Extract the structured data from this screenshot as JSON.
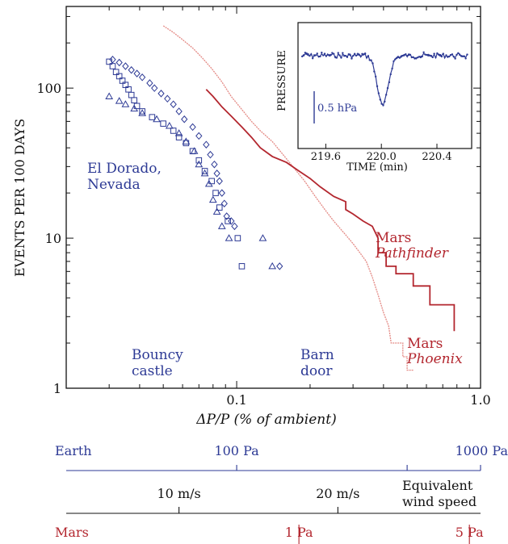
{
  "colors": {
    "earth": "#2d3a95",
    "mars": "#b3272f",
    "mars_light": "#e48a85",
    "axis": "#111111"
  },
  "chart_data": [
    {
      "type": "scatter",
      "title": "",
      "xlabel": "ΔP/P (% of ambient)",
      "ylabel": "EVENTS PER 100 DAYS",
      "xscale": "log",
      "yscale": "log",
      "xlim": [
        0.02,
        1.0
      ],
      "ylim": [
        1,
        350
      ],
      "x_ticks": [
        {
          "value": 0.1,
          "label": "0.1"
        },
        {
          "value": 1.0,
          "label": "1.0"
        }
      ],
      "y_ticks": [
        {
          "value": 1,
          "label": "1"
        },
        {
          "value": 10,
          "label": "10"
        },
        {
          "value": 100,
          "label": "100"
        }
      ],
      "annotations": {
        "el_dorado": [
          "El Dorado,",
          "Nevada"
        ],
        "bouncy": [
          "Bouncy",
          "castle"
        ],
        "barn": [
          "Barn",
          "door"
        ],
        "pathfinder": [
          "Mars",
          "Pathfinder"
        ],
        "phoenix": [
          "Mars",
          "Phoenix"
        ]
      },
      "series": [
        {
          "marker": "diamond",
          "points": [
            [
              0.031,
              155
            ],
            [
              0.033,
              148
            ],
            [
              0.035,
              140
            ],
            [
              0.037,
              132
            ],
            [
              0.039,
              125
            ],
            [
              0.041,
              118
            ],
            [
              0.044,
              108
            ],
            [
              0.046,
              100
            ],
            [
              0.049,
              92
            ],
            [
              0.052,
              85
            ],
            [
              0.055,
              78
            ],
            [
              0.058,
              70
            ],
            [
              0.061,
              62
            ],
            [
              0.066,
              55
            ],
            [
              0.07,
              48
            ],
            [
              0.075,
              42
            ],
            [
              0.078,
              36
            ],
            [
              0.081,
              31
            ],
            [
              0.083,
              27
            ],
            [
              0.085,
              24
            ],
            [
              0.087,
              20
            ],
            [
              0.089,
              17
            ],
            [
              0.091,
              14
            ],
            [
              0.095,
              13
            ],
            [
              0.098,
              12
            ],
            [
              0.15,
              6.5
            ]
          ]
        },
        {
          "marker": "square",
          "points": [
            [
              0.03,
              150
            ],
            [
              0.031,
              140
            ],
            [
              0.032,
              128
            ],
            [
              0.033,
              120
            ],
            [
              0.034,
              112
            ],
            [
              0.035,
              105
            ],
            [
              0.036,
              98
            ],
            [
              0.037,
              90
            ],
            [
              0.038,
              83
            ],
            [
              0.039,
              76
            ],
            [
              0.041,
              70
            ],
            [
              0.045,
              64
            ],
            [
              0.05,
              58
            ],
            [
              0.055,
              52
            ],
            [
              0.058,
              47
            ],
            [
              0.062,
              43
            ],
            [
              0.066,
              38
            ],
            [
              0.07,
              33
            ],
            [
              0.074,
              28
            ],
            [
              0.079,
              24
            ],
            [
              0.082,
              20
            ],
            [
              0.085,
              16
            ],
            [
              0.092,
              13
            ],
            [
              0.101,
              10
            ],
            [
              0.105,
              6.5
            ]
          ]
        },
        {
          "marker": "triangle",
          "points": [
            [
              0.03,
              88
            ],
            [
              0.033,
              82
            ],
            [
              0.035,
              78
            ],
            [
              0.038,
              73
            ],
            [
              0.041,
              68
            ],
            [
              0.047,
              62
            ],
            [
              0.053,
              56
            ],
            [
              0.058,
              50
            ],
            [
              0.062,
              44
            ],
            [
              0.067,
              38
            ],
            [
              0.07,
              31
            ],
            [
              0.074,
              27
            ],
            [
              0.077,
              23
            ],
            [
              0.08,
              18
            ],
            [
              0.083,
              15
            ],
            [
              0.087,
              12
            ],
            [
              0.093,
              10
            ],
            [
              0.128,
              10
            ],
            [
              0.14,
              6.5
            ]
          ]
        },
        {
          "name": "Mars Phoenix",
          "type": "step",
          "points": [
            [
              0.05,
              260
            ],
            [
              0.055,
              235
            ],
            [
              0.06,
              210
            ],
            [
              0.066,
              185
            ],
            [
              0.072,
              160
            ],
            [
              0.079,
              135
            ],
            [
              0.087,
              110
            ],
            [
              0.095,
              88
            ],
            [
              0.105,
              72
            ],
            [
              0.115,
              60
            ],
            [
              0.125,
              52
            ],
            [
              0.14,
              44
            ],
            [
              0.155,
              36
            ],
            [
              0.17,
              30
            ],
            [
              0.19,
              24
            ],
            [
              0.21,
              19
            ],
            [
              0.23,
              15.5
            ],
            [
              0.25,
              13
            ],
            [
              0.28,
              10.5
            ],
            [
              0.3,
              9.2
            ],
            [
              0.32,
              8
            ],
            [
              0.34,
              7
            ],
            [
              0.36,
              5.5
            ],
            [
              0.38,
              4.2
            ],
            [
              0.4,
              3.2
            ],
            [
              0.42,
              2.6
            ],
            [
              0.43,
              2.0
            ],
            [
              0.48,
              2.0
            ],
            [
              0.48,
              1.62
            ],
            [
              0.5,
              1.62
            ],
            [
              0.5,
              1.32
            ],
            [
              0.53,
              1.32
            ]
          ]
        },
        {
          "name": "Mars Pathfinder",
          "type": "step",
          "points": [
            [
              0.075,
              98
            ],
            [
              0.08,
              88
            ],
            [
              0.087,
              75
            ],
            [
              0.095,
              65
            ],
            [
              0.105,
              55
            ],
            [
              0.115,
              47
            ],
            [
              0.125,
              40
            ],
            [
              0.14,
              35
            ],
            [
              0.16,
              32
            ],
            [
              0.18,
              28
            ],
            [
              0.2,
              25
            ],
            [
              0.22,
              22
            ],
            [
              0.25,
              19
            ],
            [
              0.28,
              17.5
            ],
            [
              0.28,
              15.5
            ],
            [
              0.3,
              14.5
            ],
            [
              0.33,
              13
            ],
            [
              0.36,
              12
            ],
            [
              0.38,
              10
            ],
            [
              0.38,
              8
            ],
            [
              0.41,
              8
            ],
            [
              0.41,
              6.5
            ],
            [
              0.45,
              6.5
            ],
            [
              0.45,
              5.8
            ],
            [
              0.53,
              5.8
            ],
            [
              0.53,
              4.8
            ],
            [
              0.62,
              4.8
            ],
            [
              0.62,
              3.6
            ],
            [
              0.78,
              3.6
            ],
            [
              0.78,
              2.4
            ]
          ]
        }
      ]
    },
    {
      "type": "line",
      "title": "",
      "xlabel": "TIME (min)",
      "ylabel": "PRESSURE",
      "xlim": [
        219.4,
        220.65
      ],
      "x_ticks": [
        {
          "value": 219.6,
          "label": "219.6"
        },
        {
          "value": 220.0,
          "label": "220.0"
        },
        {
          "value": 220.4,
          "label": "220.4"
        }
      ],
      "scale_bar_label": "0.5 hPa"
    }
  ],
  "conversion_scales": {
    "earth": {
      "name": "Earth",
      "ticks": [
        {
          "value": 0.1,
          "label": "100 Pa"
        },
        {
          "value": 0.5,
          "label": ""
        },
        {
          "value": 1.0,
          "label": "1000 Pa"
        }
      ]
    },
    "wind": {
      "label_lines": [
        "Equivalent",
        "wind speed"
      ],
      "ticks": [
        {
          "value": 0.058,
          "label": "10 m/s"
        },
        {
          "value": 0.26,
          "label": "20 m/s"
        }
      ]
    },
    "mars": {
      "name": "Mars",
      "ticks": [
        {
          "value": 0.18,
          "label": "1 Pa"
        },
        {
          "value": 0.9,
          "label": "5 Pa"
        }
      ]
    }
  }
}
